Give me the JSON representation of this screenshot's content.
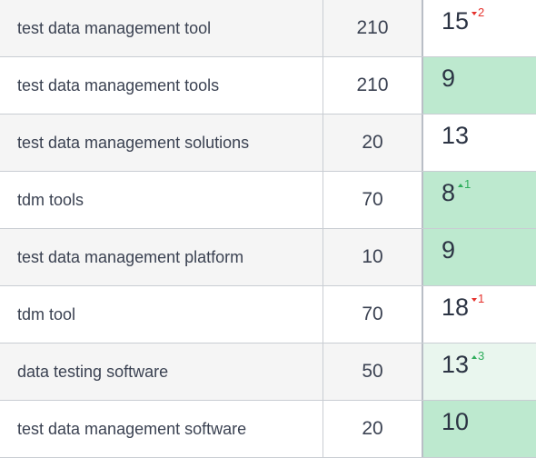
{
  "rows": [
    {
      "keyword": "test data management tool",
      "volume": "210",
      "position": "15",
      "change": "2",
      "change_dir": "down",
      "highlight": "none"
    },
    {
      "keyword": "test data management tools",
      "volume": "210",
      "position": "9",
      "change": "",
      "change_dir": "",
      "highlight": "green"
    },
    {
      "keyword": "test data management solutions",
      "volume": "20",
      "position": "13",
      "change": "",
      "change_dir": "",
      "highlight": "none"
    },
    {
      "keyword": "tdm tools",
      "volume": "70",
      "position": "8",
      "change": "1",
      "change_dir": "up",
      "highlight": "green"
    },
    {
      "keyword": "test data management platform",
      "volume": "10",
      "position": "9",
      "change": "",
      "change_dir": "",
      "highlight": "green"
    },
    {
      "keyword": "tdm tool",
      "volume": "70",
      "position": "18",
      "change": "1",
      "change_dir": "down",
      "highlight": "none"
    },
    {
      "keyword": "data testing software",
      "volume": "50",
      "position": "13",
      "change": "3",
      "change_dir": "up",
      "highlight": "light"
    },
    {
      "keyword": "test data management software",
      "volume": "20",
      "position": "10",
      "change": "",
      "change_dir": "",
      "highlight": "green"
    }
  ],
  "colors": {
    "highlight_green": "#bde9cf",
    "highlight_light": "#e9f6ee",
    "change_down": "#e5322d",
    "change_up": "#2ead5b",
    "row_stripe": "#f5f5f5"
  },
  "icons": {
    "change_down": "triangle-down-icon",
    "change_up": "triangle-up-icon"
  }
}
